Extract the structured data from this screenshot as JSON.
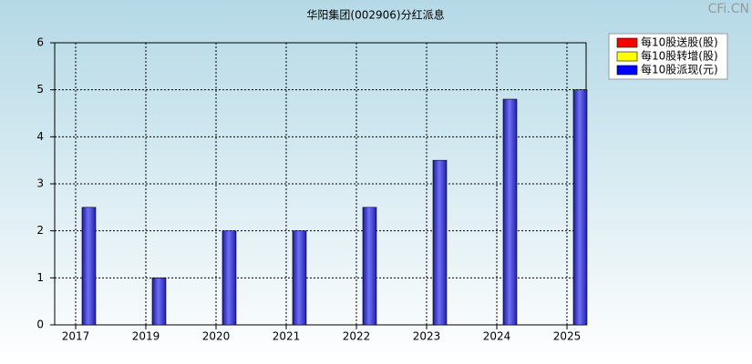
{
  "chart_data": {
    "type": "bar",
    "title": "华阳集团(002906)分红派息",
    "watermark": "CFi.CN",
    "categories": [
      "2017",
      "2019",
      "2020",
      "2021",
      "2022",
      "2023",
      "2024",
      "2025"
    ],
    "series": [
      {
        "name": "每10股送股(股)",
        "color": "#ff0000",
        "values": [
          null,
          null,
          null,
          null,
          null,
          null,
          null,
          null
        ]
      },
      {
        "name": "每10股转增(股)",
        "color": "#ffff00",
        "values": [
          null,
          null,
          null,
          null,
          null,
          null,
          null,
          null
        ]
      },
      {
        "name": "每10股派现(元)",
        "color": "#0000ff",
        "values": [
          2.5,
          1,
          2,
          2,
          2.5,
          3.5,
          4.8,
          5
        ]
      }
    ],
    "ylim": [
      0,
      6
    ],
    "yticks": [
      0,
      1,
      2,
      3,
      4,
      5,
      6
    ],
    "grid": true,
    "legend": "top-right"
  }
}
